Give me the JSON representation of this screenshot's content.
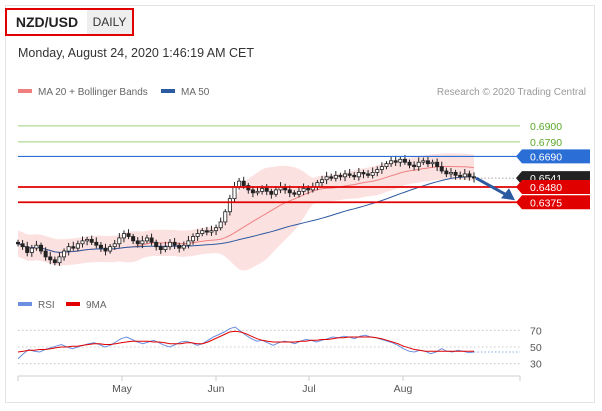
{
  "header": {
    "pair": "NZD/USD",
    "period": "DAILY",
    "timestamp": "Monday, August 24, 2020 1:46:19 AM CET"
  },
  "legend": {
    "bollinger": "MA 20 + Bollinger Bands",
    "ma50": "MA 50",
    "credit": "Research © 2020 Trading Central",
    "rsi": "RSI",
    "nine_ma": "9MA"
  },
  "colors": {
    "resistance_green": "#9dd37a",
    "pivot_blue": "#2b6fd6",
    "support_red": "#e00000",
    "bollinger_fill": "#fbdada",
    "ma20": "#f08080",
    "ma50": "#2c5aa0",
    "candle": "#222222",
    "arrow": "#2c5aa0",
    "last_price_bg": "#222222",
    "rsi_line": "#6a8fe0",
    "nine_ma_line": "#e00000"
  },
  "chart_data": [
    {
      "type": "candlestick",
      "pair": "NZD/USD",
      "timeframe": "daily",
      "x_tick_labels": [
        "May",
        "Jun",
        "Jul",
        "Aug"
      ],
      "ylim": [
        0.58,
        0.705
      ],
      "levels": [
        {
          "label": "0.6900",
          "value": 0.69,
          "kind": "resistance"
        },
        {
          "label": "0.6790",
          "value": 0.679,
          "kind": "resistance"
        },
        {
          "label": "0.6690",
          "value": 0.669,
          "kind": "pivot"
        },
        {
          "label": "0.6541",
          "value": 0.6541,
          "kind": "last-price"
        },
        {
          "label": "0.6480",
          "value": 0.648,
          "kind": "support"
        },
        {
          "label": "0.6375",
          "value": 0.6375,
          "kind": "support"
        }
      ],
      "forecast_direction": "down",
      "close_series": [
        0.609,
        0.607,
        0.603,
        0.606,
        0.608,
        0.604,
        0.6,
        0.598,
        0.596,
        0.6,
        0.604,
        0.607,
        0.606,
        0.609,
        0.611,
        0.612,
        0.61,
        0.608,
        0.606,
        0.604,
        0.607,
        0.609,
        0.613,
        0.616,
        0.614,
        0.611,
        0.609,
        0.611,
        0.613,
        0.61,
        0.607,
        0.605,
        0.607,
        0.61,
        0.608,
        0.606,
        0.608,
        0.611,
        0.614,
        0.616,
        0.618,
        0.617,
        0.618,
        0.62,
        0.624,
        0.631,
        0.64,
        0.648,
        0.652,
        0.649,
        0.646,
        0.644,
        0.645,
        0.647,
        0.645,
        0.643,
        0.646,
        0.648,
        0.646,
        0.644,
        0.643,
        0.645,
        0.647,
        0.646,
        0.648,
        0.651,
        0.653,
        0.655,
        0.654,
        0.656,
        0.655,
        0.657,
        0.656,
        0.655,
        0.658,
        0.657,
        0.656,
        0.658,
        0.66,
        0.662,
        0.664,
        0.666,
        0.665,
        0.667,
        0.665,
        0.663,
        0.662,
        0.665,
        0.666,
        0.664,
        0.665,
        0.662,
        0.659,
        0.657,
        0.658,
        0.656,
        0.655,
        0.657,
        0.655,
        0.6541
      ]
    },
    {
      "type": "line",
      "title": "RSI",
      "series": [
        {
          "name": "RSI",
          "values": [
            36,
            42,
            47,
            45,
            44,
            47,
            49,
            51,
            53,
            50,
            48,
            50,
            52,
            54,
            55,
            53,
            50,
            52,
            56,
            60,
            62,
            59,
            56,
            54,
            56,
            58,
            55,
            52,
            50,
            53,
            56,
            57,
            55,
            52,
            54,
            58,
            62,
            65,
            68,
            72,
            74,
            69,
            64,
            60,
            57,
            58,
            55,
            52,
            55,
            57,
            56,
            54,
            57,
            59,
            58,
            56,
            58,
            60,
            62,
            61,
            63,
            62,
            60,
            63,
            64,
            62,
            61,
            59,
            57,
            55,
            52,
            48,
            45,
            44,
            46,
            45,
            42,
            44,
            48,
            45,
            44,
            46,
            45,
            43,
            44
          ]
        },
        {
          "name": "9MA",
          "values": [
            44,
            45,
            46,
            46,
            47,
            47,
            48,
            49,
            50,
            50,
            51,
            51,
            52,
            53,
            54,
            54,
            53,
            53,
            54,
            55,
            56,
            57,
            57,
            57,
            57,
            56,
            56,
            55,
            54,
            54,
            54,
            55,
            55,
            54,
            54,
            56,
            59,
            62,
            65,
            68,
            69,
            68,
            66,
            63,
            60,
            58,
            57,
            56,
            56,
            56,
            56,
            56,
            57,
            57,
            58,
            58,
            59,
            59,
            60,
            61,
            61,
            62,
            62,
            62,
            62,
            62,
            61,
            60,
            58,
            56,
            54,
            51,
            49,
            47,
            46,
            45,
            45,
            45,
            45,
            45,
            45,
            45,
            45,
            45,
            45
          ]
        }
      ],
      "y_tick_labels": [
        "70",
        "50",
        "30"
      ],
      "ylim": [
        20,
        80
      ]
    }
  ]
}
